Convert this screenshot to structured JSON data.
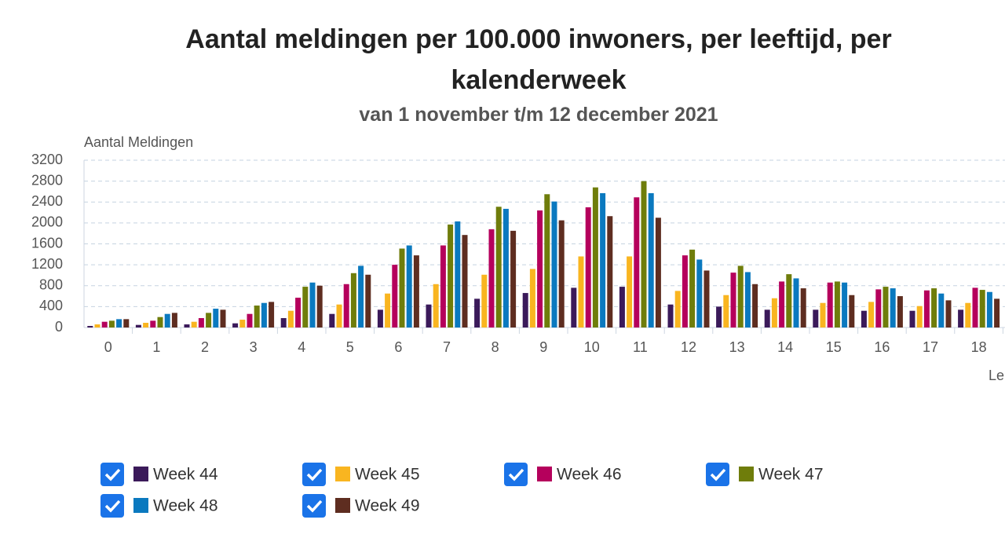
{
  "chart_data": {
    "type": "bar",
    "title": "Aantal meldingen per 100.000 inwoners, per leeftijd, per kalenderweek",
    "subtitle": "van 1 november t/m 12 december 2021",
    "y_label": "Aantal Meldingen",
    "x_label": "Le",
    "categories": [
      "0",
      "1",
      "2",
      "3",
      "4",
      "5",
      "6",
      "7",
      "8",
      "9",
      "10",
      "11",
      "12",
      "13",
      "14",
      "15",
      "16",
      "17",
      "18"
    ],
    "series": [
      {
        "name": "Week 44",
        "color": "#3b1a5a",
        "values": [
          30,
          50,
          60,
          80,
          180,
          260,
          340,
          440,
          550,
          660,
          760,
          780,
          440,
          400,
          340,
          340,
          320,
          320,
          340
        ]
      },
      {
        "name": "Week 45",
        "color": "#f9b520",
        "values": [
          60,
          90,
          110,
          150,
          320,
          440,
          650,
          830,
          1010,
          1120,
          1360,
          1360,
          700,
          620,
          560,
          470,
          490,
          410,
          470
        ]
      },
      {
        "name": "Week 46",
        "color": "#b5005c",
        "values": [
          110,
          130,
          180,
          260,
          570,
          830,
          1200,
          1570,
          1880,
          2240,
          2300,
          2490,
          1380,
          1050,
          880,
          860,
          730,
          710,
          760
        ]
      },
      {
        "name": "Week 47",
        "color": "#6f7d0b",
        "values": [
          130,
          200,
          280,
          420,
          780,
          1040,
          1510,
          1970,
          2310,
          2550,
          2680,
          2800,
          1490,
          1180,
          1020,
          880,
          780,
          750,
          720
        ]
      },
      {
        "name": "Week 48",
        "color": "#0a79bf",
        "values": [
          160,
          260,
          360,
          470,
          860,
          1180,
          1570,
          2030,
          2270,
          2410,
          2570,
          2570,
          1300,
          1060,
          940,
          860,
          750,
          650,
          680
        ]
      },
      {
        "name": "Week 49",
        "color": "#5e2d20",
        "values": [
          160,
          280,
          340,
          490,
          800,
          1010,
          1380,
          1770,
          1850,
          2050,
          2130,
          2100,
          1090,
          830,
          750,
          620,
          600,
          520,
          550
        ]
      }
    ],
    "ylim": [
      0,
      3200
    ],
    "yticks": [
      0,
      400,
      800,
      1200,
      1600,
      2000,
      2400,
      2800,
      3200
    ],
    "grid": true
  }
}
